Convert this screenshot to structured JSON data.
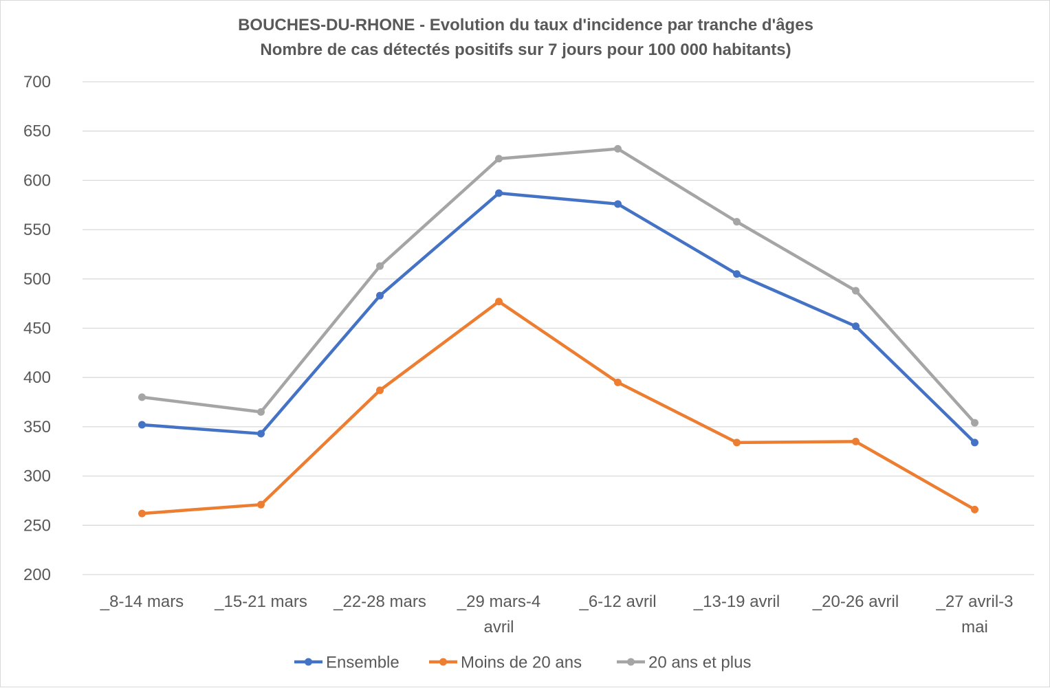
{
  "chart_data": {
    "type": "line",
    "title": "BOUCHES-DU-RHONE  - Evolution du taux d'incidence par tranche d'âges",
    "subtitle": "Nombre de cas détectés positifs sur 7 jours pour 100 000 habitants)",
    "categories": [
      [
        "_8-14 mars"
      ],
      [
        "_15-21 mars"
      ],
      [
        "_22-28 mars"
      ],
      [
        "_29 mars-4",
        "avril"
      ],
      [
        "_6-12 avril"
      ],
      [
        "_13-19 avril"
      ],
      [
        "_20-26 avril"
      ],
      [
        "_27 avril-3",
        "mai"
      ]
    ],
    "ylim": [
      200,
      700
    ],
    "yticks": [
      200,
      250,
      300,
      350,
      400,
      450,
      500,
      550,
      600,
      650,
      700
    ],
    "grid": true,
    "legend_position": "bottom",
    "series": [
      {
        "name": "Ensemble",
        "color": "#4472C4",
        "values": [
          352,
          343,
          483,
          587,
          576,
          505,
          452,
          334
        ]
      },
      {
        "name": "Moins de 20 ans",
        "color": "#ED7D31",
        "values": [
          262,
          271,
          387,
          477,
          395,
          334,
          335,
          266
        ]
      },
      {
        "name": "20 ans et plus",
        "color": "#A5A5A5",
        "values": [
          380,
          365,
          513,
          622,
          632,
          558,
          488,
          354
        ]
      }
    ]
  }
}
